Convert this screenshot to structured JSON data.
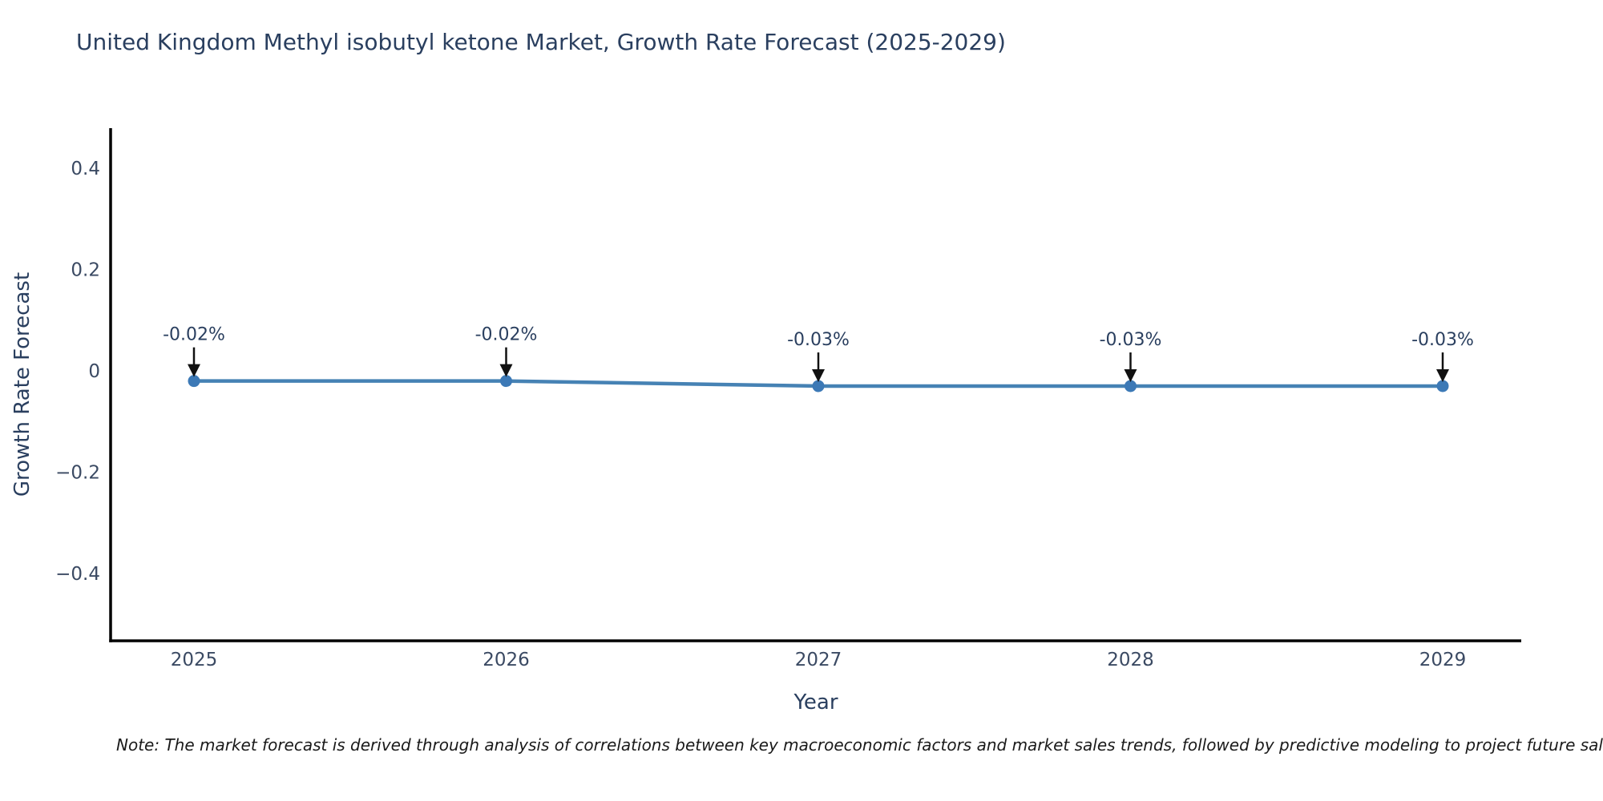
{
  "chart_data": {
    "type": "line",
    "title": "United Kingdom Methyl isobutyl ketone Market, Growth Rate Forecast (2025-2029)",
    "xlabel": "Year",
    "ylabel": "Growth Rate Forecast",
    "x": [
      2025,
      2026,
      2027,
      2028,
      2029
    ],
    "xtick_labels": [
      "2025",
      "2026",
      "2027",
      "2028",
      "2029"
    ],
    "values": [
      -0.02,
      -0.02,
      -0.03,
      -0.03,
      -0.03
    ],
    "point_labels": [
      "-0.02%",
      "-0.02%",
      "-0.03%",
      "-0.03%",
      "-0.03%"
    ],
    "yticks": [
      0.4,
      0.2,
      0,
      -0.2,
      -0.4
    ],
    "ytick_labels": [
      "0.4",
      "0.2",
      "0",
      "−0.2",
      "−0.4"
    ],
    "ylim": [
      -0.53,
      0.48
    ],
    "grid": false,
    "legend": "none",
    "annotation_style": "down-arrow-to-point"
  },
  "note": "Note: The market forecast is derived through analysis of correlations between key macroeconomic factors and market sales trends, followed by predictive modeling to project future sales",
  "colors": {
    "line": "#4682b4",
    "marker": "#3c79b6",
    "axis": "#000000",
    "tick_text": "#3b4a63",
    "title_text": "#2a3f5f",
    "annotation_text": "#2a3f5f",
    "arrow": "#111111",
    "note_text": "#1a1a1a",
    "background": "#ffffff"
  }
}
